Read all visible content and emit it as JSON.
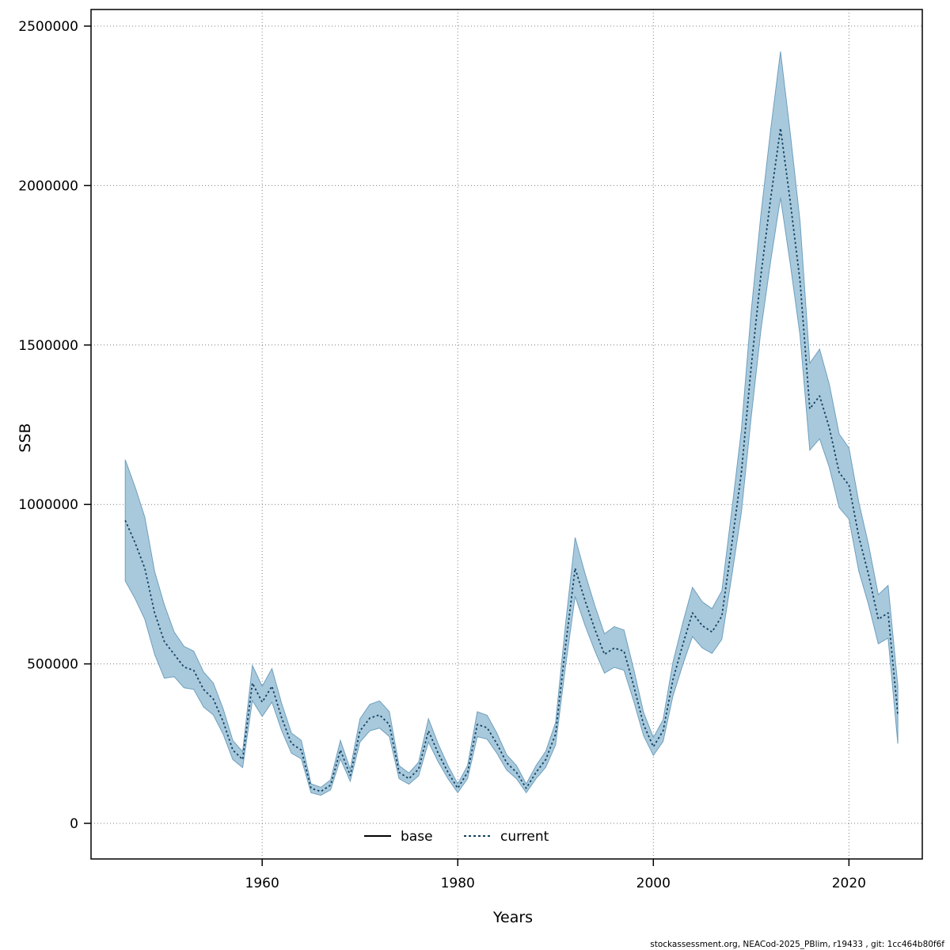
{
  "figure": {
    "footer": "stockassessment.org, NEACod-2025_PBlim, r19433 , git: 1cc464b80f6f"
  },
  "chart_data": {
    "type": "line",
    "title": "",
    "xlabel": "Years",
    "ylabel": "SSB",
    "xlim": [
      1942.5,
      2027.5
    ],
    "ylim": [
      0,
      2500000
    ],
    "x_ticks": [
      1960,
      1980,
      2000,
      2020
    ],
    "y_ticks": [
      0,
      500000,
      1000000,
      1500000,
      2000000,
      2500000
    ],
    "grid": "dotted",
    "legend": {
      "position": "bottom-center-inside",
      "entries": [
        {
          "name": "base",
          "style": "solid",
          "color": "#000000"
        },
        {
          "name": "current",
          "style": "dotted",
          "color": "#14405f"
        }
      ]
    },
    "colors": {
      "band": "#a8c9dc",
      "band_edge": "#6e9fbe",
      "line": "#14405f"
    },
    "note": "base series line coincides with current and is hidden underneath; shaded region is the confidence band of the current series",
    "years": [
      1946,
      1947,
      1948,
      1949,
      1950,
      1951,
      1952,
      1953,
      1954,
      1955,
      1956,
      1957,
      1958,
      1959,
      1960,
      1961,
      1962,
      1963,
      1964,
      1965,
      1966,
      1967,
      1968,
      1969,
      1970,
      1971,
      1972,
      1973,
      1974,
      1975,
      1976,
      1977,
      1978,
      1979,
      1980,
      1981,
      1982,
      1983,
      1984,
      1985,
      1986,
      1987,
      1988,
      1989,
      1990,
      1991,
      1992,
      1993,
      1994,
      1995,
      1996,
      1997,
      1998,
      1999,
      2000,
      2001,
      2002,
      2003,
      2004,
      2005,
      2006,
      2007,
      2008,
      2009,
      2010,
      2011,
      2012,
      2013,
      2014,
      2015,
      2016,
      2017,
      2018,
      2019,
      2020,
      2021,
      2022,
      2023,
      2024,
      2025
    ],
    "series": [
      {
        "name": "current",
        "style": "dotted",
        "values": [
          950000,
          880000,
          800000,
          660000,
          570000,
          530000,
          490000,
          480000,
          420000,
          390000,
          320000,
          230000,
          200000,
          440000,
          380000,
          430000,
          330000,
          250000,
          230000,
          110000,
          100000,
          120000,
          230000,
          150000,
          290000,
          330000,
          340000,
          310000,
          160000,
          140000,
          170000,
          290000,
          220000,
          160000,
          110000,
          160000,
          310000,
          300000,
          250000,
          190000,
          160000,
          110000,
          160000,
          200000,
          280000,
          550000,
          800000,
          700000,
          610000,
          530000,
          550000,
          540000,
          430000,
          310000,
          240000,
          290000,
          450000,
          560000,
          660000,
          620000,
          600000,
          650000,
          870000,
          1100000,
          1430000,
          1720000,
          1960000,
          2180000,
          1950000,
          1700000,
          1300000,
          1340000,
          1240000,
          1100000,
          1060000,
          900000,
          780000,
          640000,
          660000,
          340000
        ],
        "lower": [
          760000,
          705000,
          640000,
          530000,
          455000,
          460000,
          425000,
          420000,
          365000,
          340000,
          280000,
          200000,
          175000,
          385000,
          335000,
          380000,
          290000,
          220000,
          202000,
          96000,
          88000,
          105000,
          202000,
          132000,
          255000,
          290000,
          299000,
          272000,
          140000,
          123000,
          149000,
          255000,
          193000,
          140000,
          96000,
          140000,
          272000,
          264000,
          220000,
          167000,
          140000,
          96000,
          140000,
          176000,
          246000,
          488000,
          712000,
          622000,
          542000,
          471000,
          489000,
          480000,
          382000,
          275000,
          213000,
          257000,
          399000,
          497000,
          586000,
          550000,
          533000,
          577000,
          772000,
          976000,
          1272000,
          1548000,
          1764000,
          1962000,
          1755000,
          1530000,
          1170000,
          1206000,
          1116000,
          990000,
          954000,
          792000,
          686000,
          563000,
          581000,
          250000
        ],
        "upper": [
          1140000,
          1055000,
          960000,
          790000,
          685000,
          600000,
          555000,
          540000,
          475000,
          440000,
          360000,
          260000,
          225000,
          495000,
          430000,
          485000,
          375000,
          283000,
          260000,
          124000,
          113000,
          136000,
          260000,
          170000,
          328000,
          373000,
          384000,
          350000,
          181000,
          158000,
          192000,
          328000,
          249000,
          181000,
          124000,
          181000,
          350000,
          339000,
          283000,
          215000,
          181000,
          124000,
          181000,
          226000,
          316000,
          618000,
          896000,
          785000,
          684000,
          594000,
          617000,
          606000,
          482000,
          348000,
          269000,
          325000,
          505000,
          628000,
          740000,
          695000,
          673000,
          729000,
          976000,
          1234000,
          1604000,
          1910000,
          2176000,
          2420000,
          2165000,
          1887000,
          1443000,
          1487000,
          1376000,
          1221000,
          1177000,
          1008000,
          874000,
          717000,
          746000,
          432000
        ]
      }
    ]
  }
}
